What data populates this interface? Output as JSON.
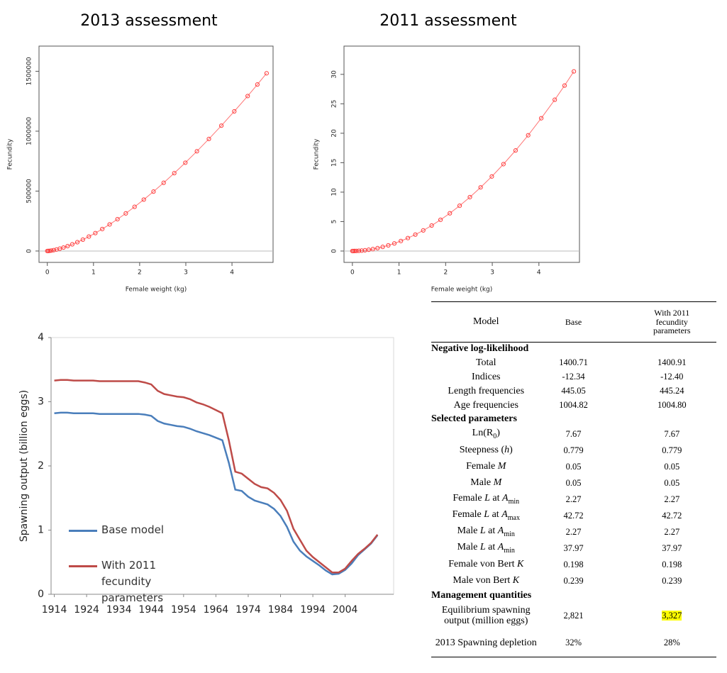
{
  "chart_data": [
    {
      "type": "line",
      "title": "2013 assessment",
      "x_label": "Female weight (kg)",
      "y_label": "Fecundity",
      "markers": true,
      "hline": 0,
      "x": [
        0,
        0.02,
        0.05,
        0.09,
        0.14,
        0.2,
        0.27,
        0.35,
        0.44,
        0.54,
        0.65,
        0.77,
        0.9,
        1.04,
        1.19,
        1.35,
        1.52,
        1.7,
        1.89,
        2.09,
        2.3,
        2.52,
        2.75,
        2.99,
        3.24,
        3.5,
        3.77,
        4.05,
        4.34,
        4.55,
        4.75
      ],
      "series": [
        {
          "color": "#ff3b3b",
          "values": [
            0,
            400,
            1500,
            3700,
            7300,
            12400,
            19500,
            28900,
            40800,
            55700,
            73600,
            95000,
            120300,
            149600,
            183300,
            221800,
            265300,
            314100,
            368700,
            429100,
            495900,
            569200,
            649700,
            737000,
            832200,
            935200,
            1046000,
            1165500,
            1293100,
            1389600,
            1483000
          ]
        }
      ],
      "xlim": [
        -0.18,
        4.89
      ],
      "ylim": [
        -95000,
        1710000
      ],
      "xticks": [
        0,
        1,
        2,
        3,
        4
      ],
      "yticks": [
        0,
        500000,
        1000000,
        1500000
      ]
    },
    {
      "type": "line",
      "title": "2011 assessment",
      "x_label": "Female weight (kg)",
      "y_label": "Fecundity",
      "markers": true,
      "hline": 0,
      "x": [
        0,
        0.02,
        0.05,
        0.09,
        0.14,
        0.2,
        0.27,
        0.35,
        0.44,
        0.54,
        0.65,
        0.77,
        0.9,
        1.04,
        1.19,
        1.35,
        1.52,
        1.7,
        1.89,
        2.09,
        2.3,
        2.52,
        2.75,
        2.99,
        3.24,
        3.5,
        3.77,
        4.05,
        4.34,
        4.55,
        4.75
      ],
      "series": [
        {
          "color": "#ff3b3b",
          "values": [
            0,
            0,
            0.01,
            0.02,
            0.04,
            0.07,
            0.13,
            0.22,
            0.33,
            0.49,
            0.7,
            0.96,
            1.29,
            1.7,
            2.2,
            2.79,
            3.5,
            4.33,
            5.3,
            6.41,
            7.69,
            9.15,
            10.81,
            12.66,
            14.75,
            17.08,
            19.66,
            22.55,
            25.69,
            28.1,
            30.5
          ]
        }
      ],
      "xlim": [
        -0.18,
        4.87
      ],
      "ylim": [
        -1.93,
        34.8
      ],
      "xticks": [
        0,
        1,
        2,
        3,
        4
      ],
      "yticks": [
        0,
        5,
        10,
        15,
        20,
        25,
        30
      ]
    },
    {
      "type": "line",
      "y_label": "Spawning output (billion eggs)",
      "legend": "lower left",
      "x": [
        1914,
        1916,
        1918,
        1920,
        1922,
        1924,
        1926,
        1928,
        1930,
        1932,
        1934,
        1936,
        1938,
        1940,
        1942,
        1944,
        1946,
        1948,
        1950,
        1952,
        1954,
        1956,
        1958,
        1960,
        1962,
        1964,
        1966,
        1968,
        1970,
        1972,
        1974,
        1976,
        1978,
        1980,
        1982,
        1984,
        1986,
        1988,
        1990,
        1992,
        1994,
        1996,
        1998,
        2000,
        2002,
        2004,
        2006,
        2008,
        2010,
        2012,
        2014
      ],
      "series": [
        {
          "name": "Base model",
          "color": "#4a7ebb",
          "values": [
            2.82,
            2.83,
            2.83,
            2.82,
            2.82,
            2.82,
            2.82,
            2.81,
            2.81,
            2.81,
            2.81,
            2.81,
            2.81,
            2.81,
            2.8,
            2.78,
            2.7,
            2.66,
            2.64,
            2.62,
            2.61,
            2.58,
            2.54,
            2.51,
            2.48,
            2.44,
            2.4,
            2.05,
            1.63,
            1.61,
            1.52,
            1.46,
            1.43,
            1.4,
            1.33,
            1.22,
            1.05,
            0.82,
            0.68,
            0.59,
            0.52,
            0.45,
            0.37,
            0.31,
            0.32,
            0.38,
            0.48,
            0.61,
            0.7,
            0.79,
            0.92
          ]
        },
        {
          "name": "With 2011 fecundity parameters",
          "color": "#be4b48",
          "values": [
            3.33,
            3.34,
            3.34,
            3.33,
            3.33,
            3.33,
            3.33,
            3.32,
            3.32,
            3.32,
            3.32,
            3.32,
            3.32,
            3.32,
            3.3,
            3.27,
            3.17,
            3.12,
            3.1,
            3.08,
            3.07,
            3.04,
            2.99,
            2.96,
            2.92,
            2.87,
            2.82,
            2.4,
            1.91,
            1.88,
            1.8,
            1.72,
            1.67,
            1.65,
            1.58,
            1.47,
            1.3,
            1.02,
            0.85,
            0.68,
            0.58,
            0.5,
            0.42,
            0.34,
            0.34,
            0.4,
            0.52,
            0.63,
            0.71,
            0.8,
            0.93
          ]
        }
      ],
      "xlim": [
        1913,
        2019
      ],
      "ylim": [
        0,
        4
      ],
      "xticks": [
        1914,
        1924,
        1934,
        1944,
        1954,
        1964,
        1974,
        1984,
        1994,
        2004
      ],
      "yticks": [
        0,
        1,
        2,
        3,
        4
      ]
    }
  ],
  "table": {
    "header": [
      "Model",
      "Base",
      "With 2011 fecundity parameters"
    ],
    "sections": [
      {
        "title": "Negative log-likelihood",
        "rows": [
          {
            "label": "Total",
            "base": "1400.71",
            "with_2011": "1400.91"
          },
          {
            "label": "Indices",
            "base": "-12.34",
            "with_2011": "-12.40"
          },
          {
            "label": "Length frequencies",
            "base": "445.05",
            "with_2011": "445.24"
          },
          {
            "label": "Age frequencies",
            "base": "1004.82",
            "with_2011": "1004.80"
          }
        ]
      },
      {
        "title": "Selected parameters",
        "rows": [
          {
            "label": [
              "Ln(R",
              "0",
              ")"
            ],
            "base": "7.67",
            "with_2011": "7.67"
          },
          {
            "label": [
              "Steepness (",
              "h",
              ")"
            ],
            "base": "0.779",
            "with_2011": "0.779"
          },
          {
            "label": [
              "Female ",
              "M"
            ],
            "base": "0.05",
            "with_2011": "0.05"
          },
          {
            "label": [
              "Male ",
              "M"
            ],
            "base": "0.05",
            "with_2011": "0.05"
          },
          {
            "label": [
              "Female ",
              "L",
              " at ",
              "A",
              "min"
            ],
            "base": "2.27",
            "with_2011": "2.27"
          },
          {
            "label": [
              "Female ",
              "L",
              " at ",
              "A",
              "max"
            ],
            "base": "42.72",
            "with_2011": "42.72"
          },
          {
            "label": [
              "Male ",
              "L",
              " at ",
              "A",
              "min"
            ],
            "base": "2.27",
            "with_2011": "2.27"
          },
          {
            "label": [
              "Male ",
              "L",
              " at ",
              "A",
              "min"
            ],
            "base": "37.97",
            "with_2011": "37.97"
          },
          {
            "label": [
              "Female von Bert ",
              "K"
            ],
            "base": "0.198",
            "with_2011": "0.198"
          },
          {
            "label": [
              "Male von Bert ",
              "K"
            ],
            "base": "0.239",
            "with_2011": "0.239"
          }
        ]
      },
      {
        "title": "Management quantities",
        "rows": [
          {
            "label": "Equilibrium spawning output (million eggs)",
            "base": "2,821",
            "with_2011": "3,327"
          },
          {
            "label": "2013 Spawning depletion",
            "base": "32%",
            "with_2011": "28%"
          }
        ]
      }
    ]
  }
}
